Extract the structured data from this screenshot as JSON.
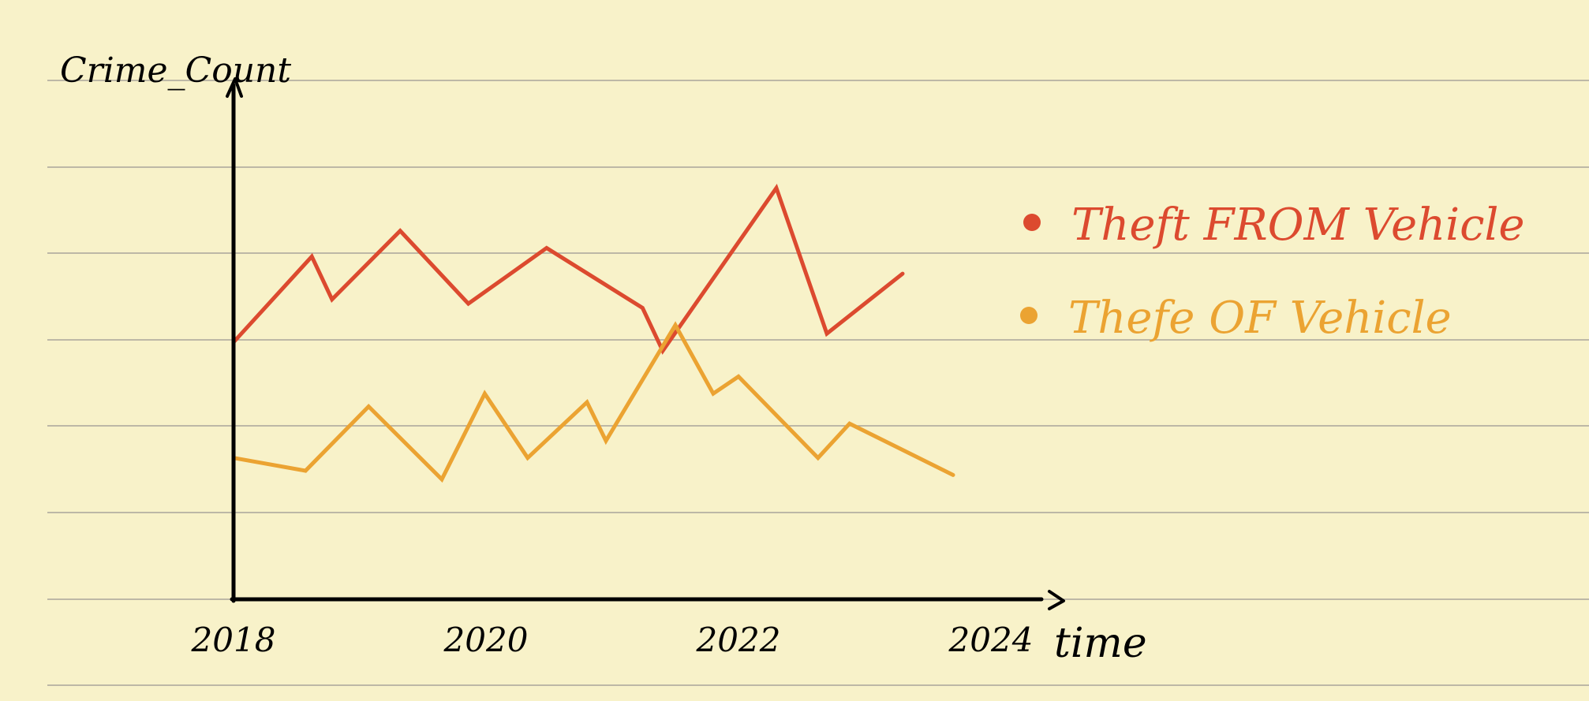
{
  "chart_data": {
    "type": "line",
    "title": "",
    "xlabel": "time",
    "ylabel": "Crime_Count",
    "x_ticks": [
      "2018",
      "2020",
      "2022",
      "2024"
    ],
    "xlim": [
      2018,
      2024.4
    ],
    "ylim": [
      0,
      6
    ],
    "grid": "horizontal ruled lines",
    "legend": "right",
    "series": [
      {
        "name": "Theft FROM Vehicle",
        "color": "#dc4a2f",
        "x": [
          2018,
          2018.62,
          2018.78,
          2019.32,
          2019.86,
          2020.48,
          2021.24,
          2021.4,
          2022.3,
          2022.7,
          2023.3
        ],
        "y": [
          3.0,
          4.0,
          3.5,
          4.3,
          3.45,
          4.1,
          3.4,
          2.9,
          4.8,
          3.1,
          3.8
        ]
      },
      {
        "name": "Thefe OF Vehicle",
        "color": "#eba332",
        "x": [
          2018,
          2018.57,
          2019.07,
          2019.65,
          2019.99,
          2020.33,
          2020.8,
          2020.95,
          2021.5,
          2021.8,
          2022.0,
          2022.63,
          2022.88,
          2023.7
        ],
        "y": [
          1.65,
          1.5,
          2.25,
          1.4,
          2.4,
          1.65,
          2.3,
          1.85,
          3.2,
          2.4,
          2.6,
          1.65,
          2.05,
          1.45
        ]
      }
    ]
  }
}
